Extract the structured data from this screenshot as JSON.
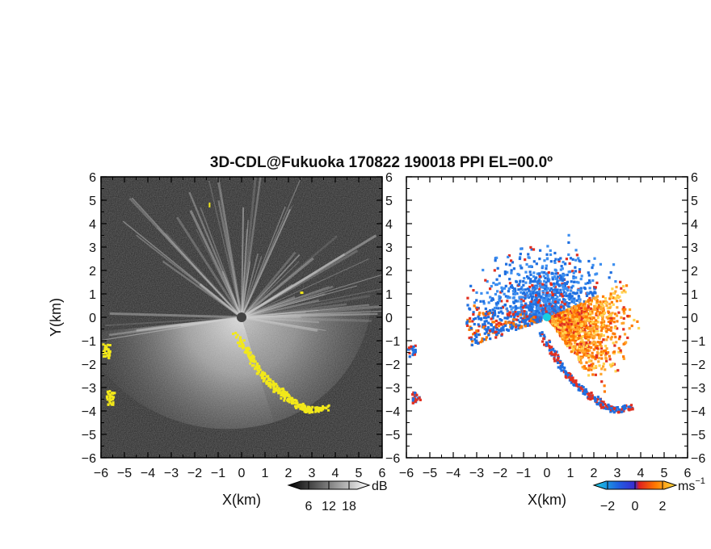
{
  "chart_data": {
    "type": "heatmap",
    "title": "3D-CDL@Fukuoka 170822 190018 PPI EL=00.0º",
    "panels": [
      {
        "name": "intensity",
        "xlabel": "X(km)",
        "ylabel": "Y(km)",
        "xlim": [
          -6,
          6
        ],
        "ylim": [
          -6,
          6
        ],
        "xticks": [
          "−6",
          "−5",
          "−4",
          "−3",
          "−2",
          "−1",
          "0",
          "1",
          "2",
          "3",
          "4",
          "5",
          "6"
        ],
        "yticks": [
          "−6",
          "−5",
          "−4",
          "−3",
          "−2",
          "−1",
          "0",
          "1",
          "2",
          "3",
          "4",
          "5",
          "6"
        ],
        "colorbar": {
          "unit": "dB",
          "ticks": [
            "6",
            "12",
            "18"
          ],
          "values": [
            6,
            12,
            18
          ],
          "range": [
            0,
            24
          ]
        }
      },
      {
        "name": "doppler-velocity",
        "xlabel": "X(km)",
        "xlim": [
          -6,
          6
        ],
        "ylim": [
          -6,
          6
        ],
        "xticks": [
          "−6",
          "−5",
          "−4",
          "−3",
          "−2",
          "−1",
          "0",
          "1",
          "2",
          "3",
          "4",
          "5",
          "6"
        ],
        "yticks": [
          "−6",
          "−5",
          "−4",
          "−3",
          "−2",
          "−1",
          "0",
          "1",
          "2",
          "3",
          "4",
          "5",
          "6"
        ],
        "colorbar": {
          "unit": "ms",
          "unit_exponent": "−1",
          "ticks": [
            "−2",
            "0",
            "2"
          ],
          "values": [
            -2,
            0,
            2
          ],
          "range": [
            -3,
            3
          ]
        }
      }
    ],
    "radar_origin": [
      0,
      0
    ],
    "hard_target_path_km": [
      [
        -0.3,
        -0.7
      ],
      [
        0.3,
        -1.6
      ],
      [
        0.8,
        -2.4
      ],
      [
        1.3,
        -2.9
      ],
      [
        1.8,
        -3.3
      ],
      [
        2.3,
        -3.7
      ],
      [
        2.8,
        -3.9
      ],
      [
        3.6,
        -3.8
      ]
    ],
    "edge_echoes_km": [
      [
        -5.9,
        -1.4
      ],
      [
        -5.7,
        -3.4
      ]
    ]
  },
  "colors": {
    "background_noise": "#2a2a2a",
    "hard_target": "#f2e81a",
    "approaching": "#1f6fe0",
    "receding": "#ff7a00",
    "center_marker": "#19d0e0"
  }
}
